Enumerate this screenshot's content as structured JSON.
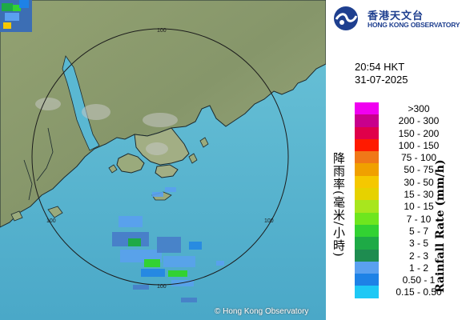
{
  "logo": {
    "name_zh": "香港天文台",
    "name_en": "HONG KONG OBSERVATORY"
  },
  "timestamp": {
    "time": "20:54 HKT",
    "date": "31-07-2025"
  },
  "legend": {
    "title_zh": "降雨率(毫米/小時)",
    "title_en": "Rainfall Rate (mm/h)",
    "items": [
      {
        "label": ">300",
        "color": "#f000f0"
      },
      {
        "label": "200 - 300",
        "color": "#c8008c"
      },
      {
        "label": "150 - 200",
        "color": "#e0004a"
      },
      {
        "label": "100 - 150",
        "color": "#ff1a00"
      },
      {
        "label": "75 - 100",
        "color": "#f07818"
      },
      {
        "label": "50 - 75",
        "color": "#f0a000"
      },
      {
        "label": "30 - 50",
        "color": "#f5c800"
      },
      {
        "label": "15 - 30",
        "color": "#e6d200"
      },
      {
        "label": "10 - 15",
        "color": "#a8e61e"
      },
      {
        "label": "7 - 10",
        "color": "#6ee61e"
      },
      {
        "label": "5 - 7",
        "color": "#32d232"
      },
      {
        "label": "3 - 5",
        "color": "#1eaa46"
      },
      {
        "label": "2 - 3",
        "color": "#1e8c50"
      },
      {
        "label": "1 - 2",
        "color": "#5aa0f0"
      },
      {
        "label": "0.50 - 1",
        "color": "#1e82e6"
      },
      {
        "label": "0.15 - 0.50",
        "color": "#1ec8f5"
      }
    ]
  },
  "map": {
    "range_ring_label": "100",
    "copyright": "© Hong Kong Observatory",
    "sea_color": "#5ab8d2",
    "land_color": "#8a9a6c"
  }
}
